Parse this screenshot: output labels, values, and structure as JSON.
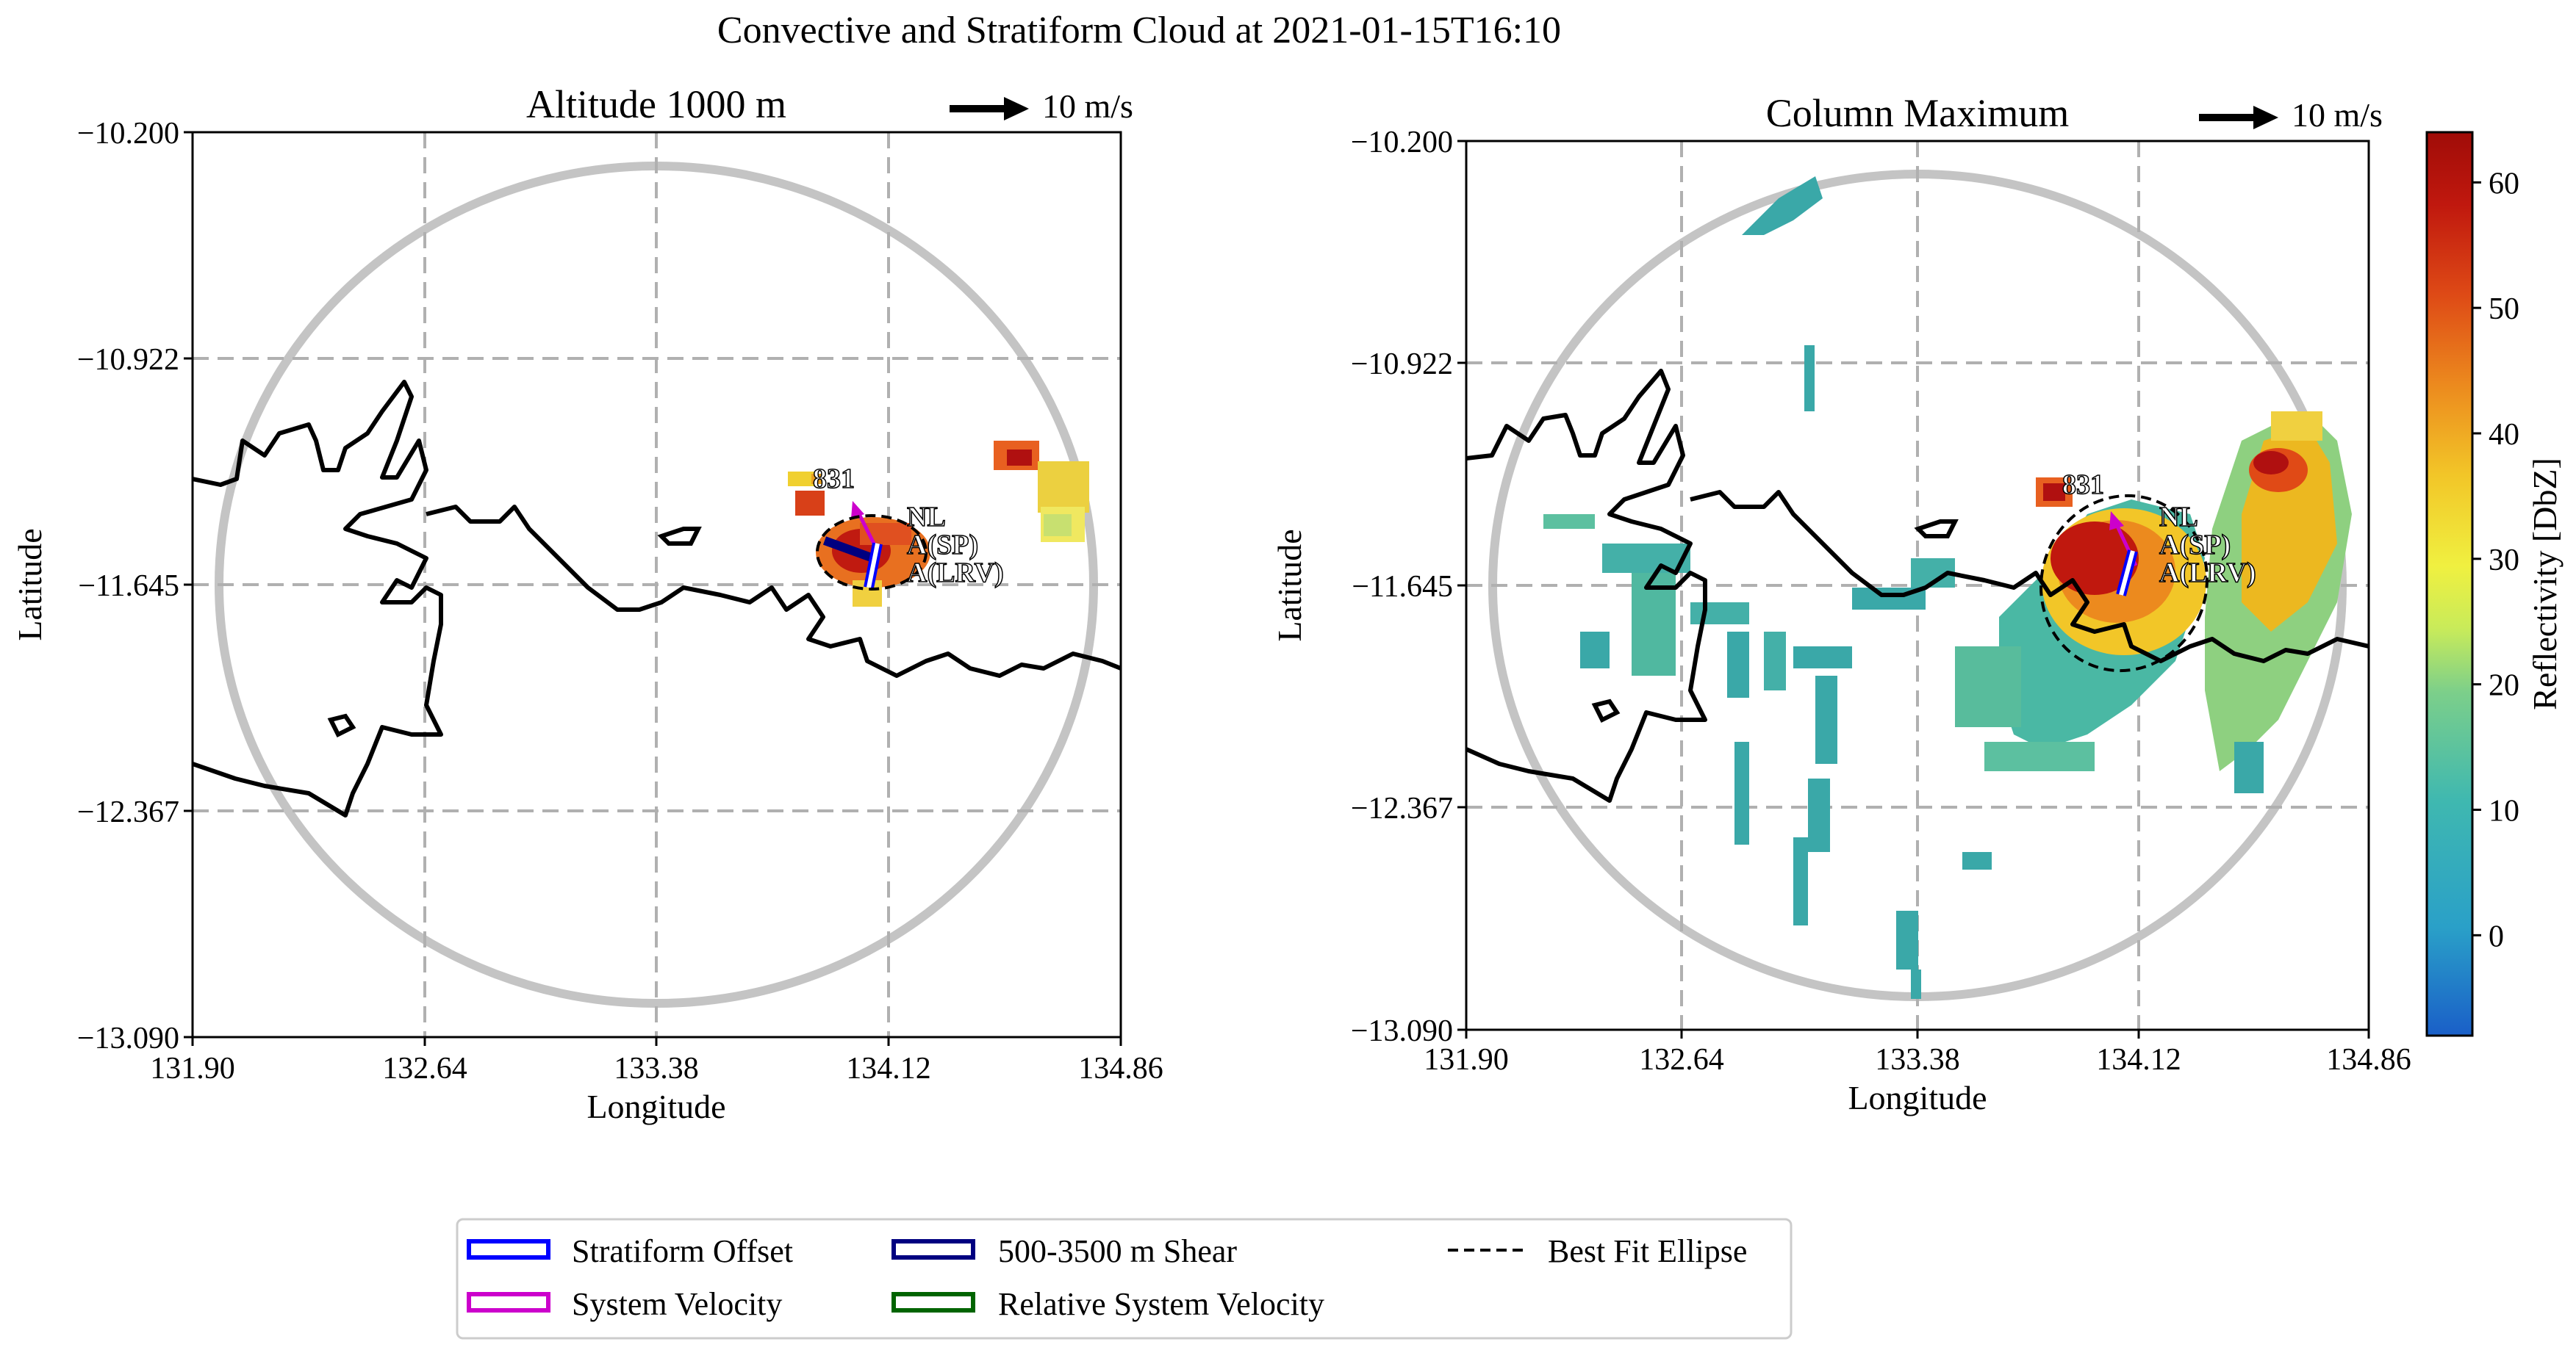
{
  "chart_data": {
    "type": "map",
    "title": "Convective and Stratiform Cloud at 2021-01-15T16:10",
    "panels": [
      {
        "title": "Altitude 1000 m",
        "xlabel": "Longitude",
        "ylabel": "Latitude",
        "xlim": [
          131.9,
          134.86
        ],
        "ylim": [
          -13.09,
          -10.2
        ],
        "xticks": [
          "131.90",
          "132.64",
          "133.38",
          "134.12",
          "134.86"
        ],
        "yticks": [
          "-10.200",
          "-10.922",
          "-11.645",
          "-12.367",
          "-13.090"
        ],
        "grid": true,
        "wind_key": "10 m/s",
        "object_id": "831",
        "labels": [
          "NL",
          "A(SP)",
          "A(LRV)"
        ]
      },
      {
        "title": "Column Maximum",
        "xlabel": "Longitude",
        "ylabel": "Latitude",
        "xlim": [
          131.9,
          134.86
        ],
        "ylim": [
          -13.09,
          -10.2
        ],
        "xticks": [
          "131.90",
          "132.64",
          "133.38",
          "134.12",
          "134.86"
        ],
        "yticks": [
          "-10.200",
          "-10.922",
          "-11.645",
          "-12.367",
          "-13.090"
        ],
        "grid": true,
        "wind_key": "10 m/s",
        "object_id": "831",
        "labels": [
          "NL",
          "A(SP)",
          "A(LRV)"
        ]
      }
    ],
    "colorbar": {
      "label": "Reflectivity [DbZ]",
      "range": [
        -8,
        64
      ],
      "ticks": [
        "0",
        "10",
        "20",
        "30",
        "40",
        "50",
        "60"
      ],
      "colormap": "HomeyerRainbow"
    },
    "legend": {
      "placement": "bottom-center",
      "entries": [
        {
          "label": "Stratiform Offset",
          "color": "#0000ff",
          "style": "box"
        },
        {
          "label": "500-3500 m Shear",
          "color": "#000080",
          "style": "box"
        },
        {
          "label": "Best Fit Ellipse",
          "color": "#000000",
          "style": "dashed"
        },
        {
          "label": "System Velocity",
          "color": "#cc00cc",
          "style": "box"
        },
        {
          "label": "Relative System Velocity",
          "color": "#006400",
          "style": "box"
        }
      ]
    }
  }
}
